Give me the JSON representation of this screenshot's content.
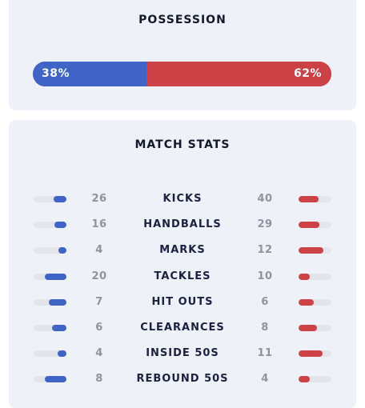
{
  "possession": {
    "title": "POSSESSION",
    "home_pct": 38,
    "away_pct": 62,
    "home_label": "38%",
    "away_label": "62%",
    "colors": {
      "home": "#3f63c7",
      "away": "#cc4146"
    }
  },
  "match_stats": {
    "title": "MATCH STATS",
    "rows": [
      {
        "name": "KICKS",
        "home": "26",
        "away": "40",
        "home_fill": 0.39,
        "away_fill": 0.61
      },
      {
        "name": "HANDBALLS",
        "home": "16",
        "away": "29",
        "home_fill": 0.36,
        "away_fill": 0.64
      },
      {
        "name": "MARKS",
        "home": "4",
        "away": "12",
        "home_fill": 0.25,
        "away_fill": 0.75
      },
      {
        "name": "TACKLES",
        "home": "20",
        "away": "10",
        "home_fill": 0.67,
        "away_fill": 0.33
      },
      {
        "name": "HIT OUTS",
        "home": "7",
        "away": "6",
        "home_fill": 0.54,
        "away_fill": 0.46
      },
      {
        "name": "CLEARANCES",
        "home": "6",
        "away": "8",
        "home_fill": 0.43,
        "away_fill": 0.57
      },
      {
        "name": "INSIDE 50S",
        "home": "4",
        "away": "11",
        "home_fill": 0.27,
        "away_fill": 0.73
      },
      {
        "name": "REBOUND 50S",
        "home": "8",
        "away": "4",
        "home_fill": 0.67,
        "away_fill": 0.33
      }
    ]
  }
}
